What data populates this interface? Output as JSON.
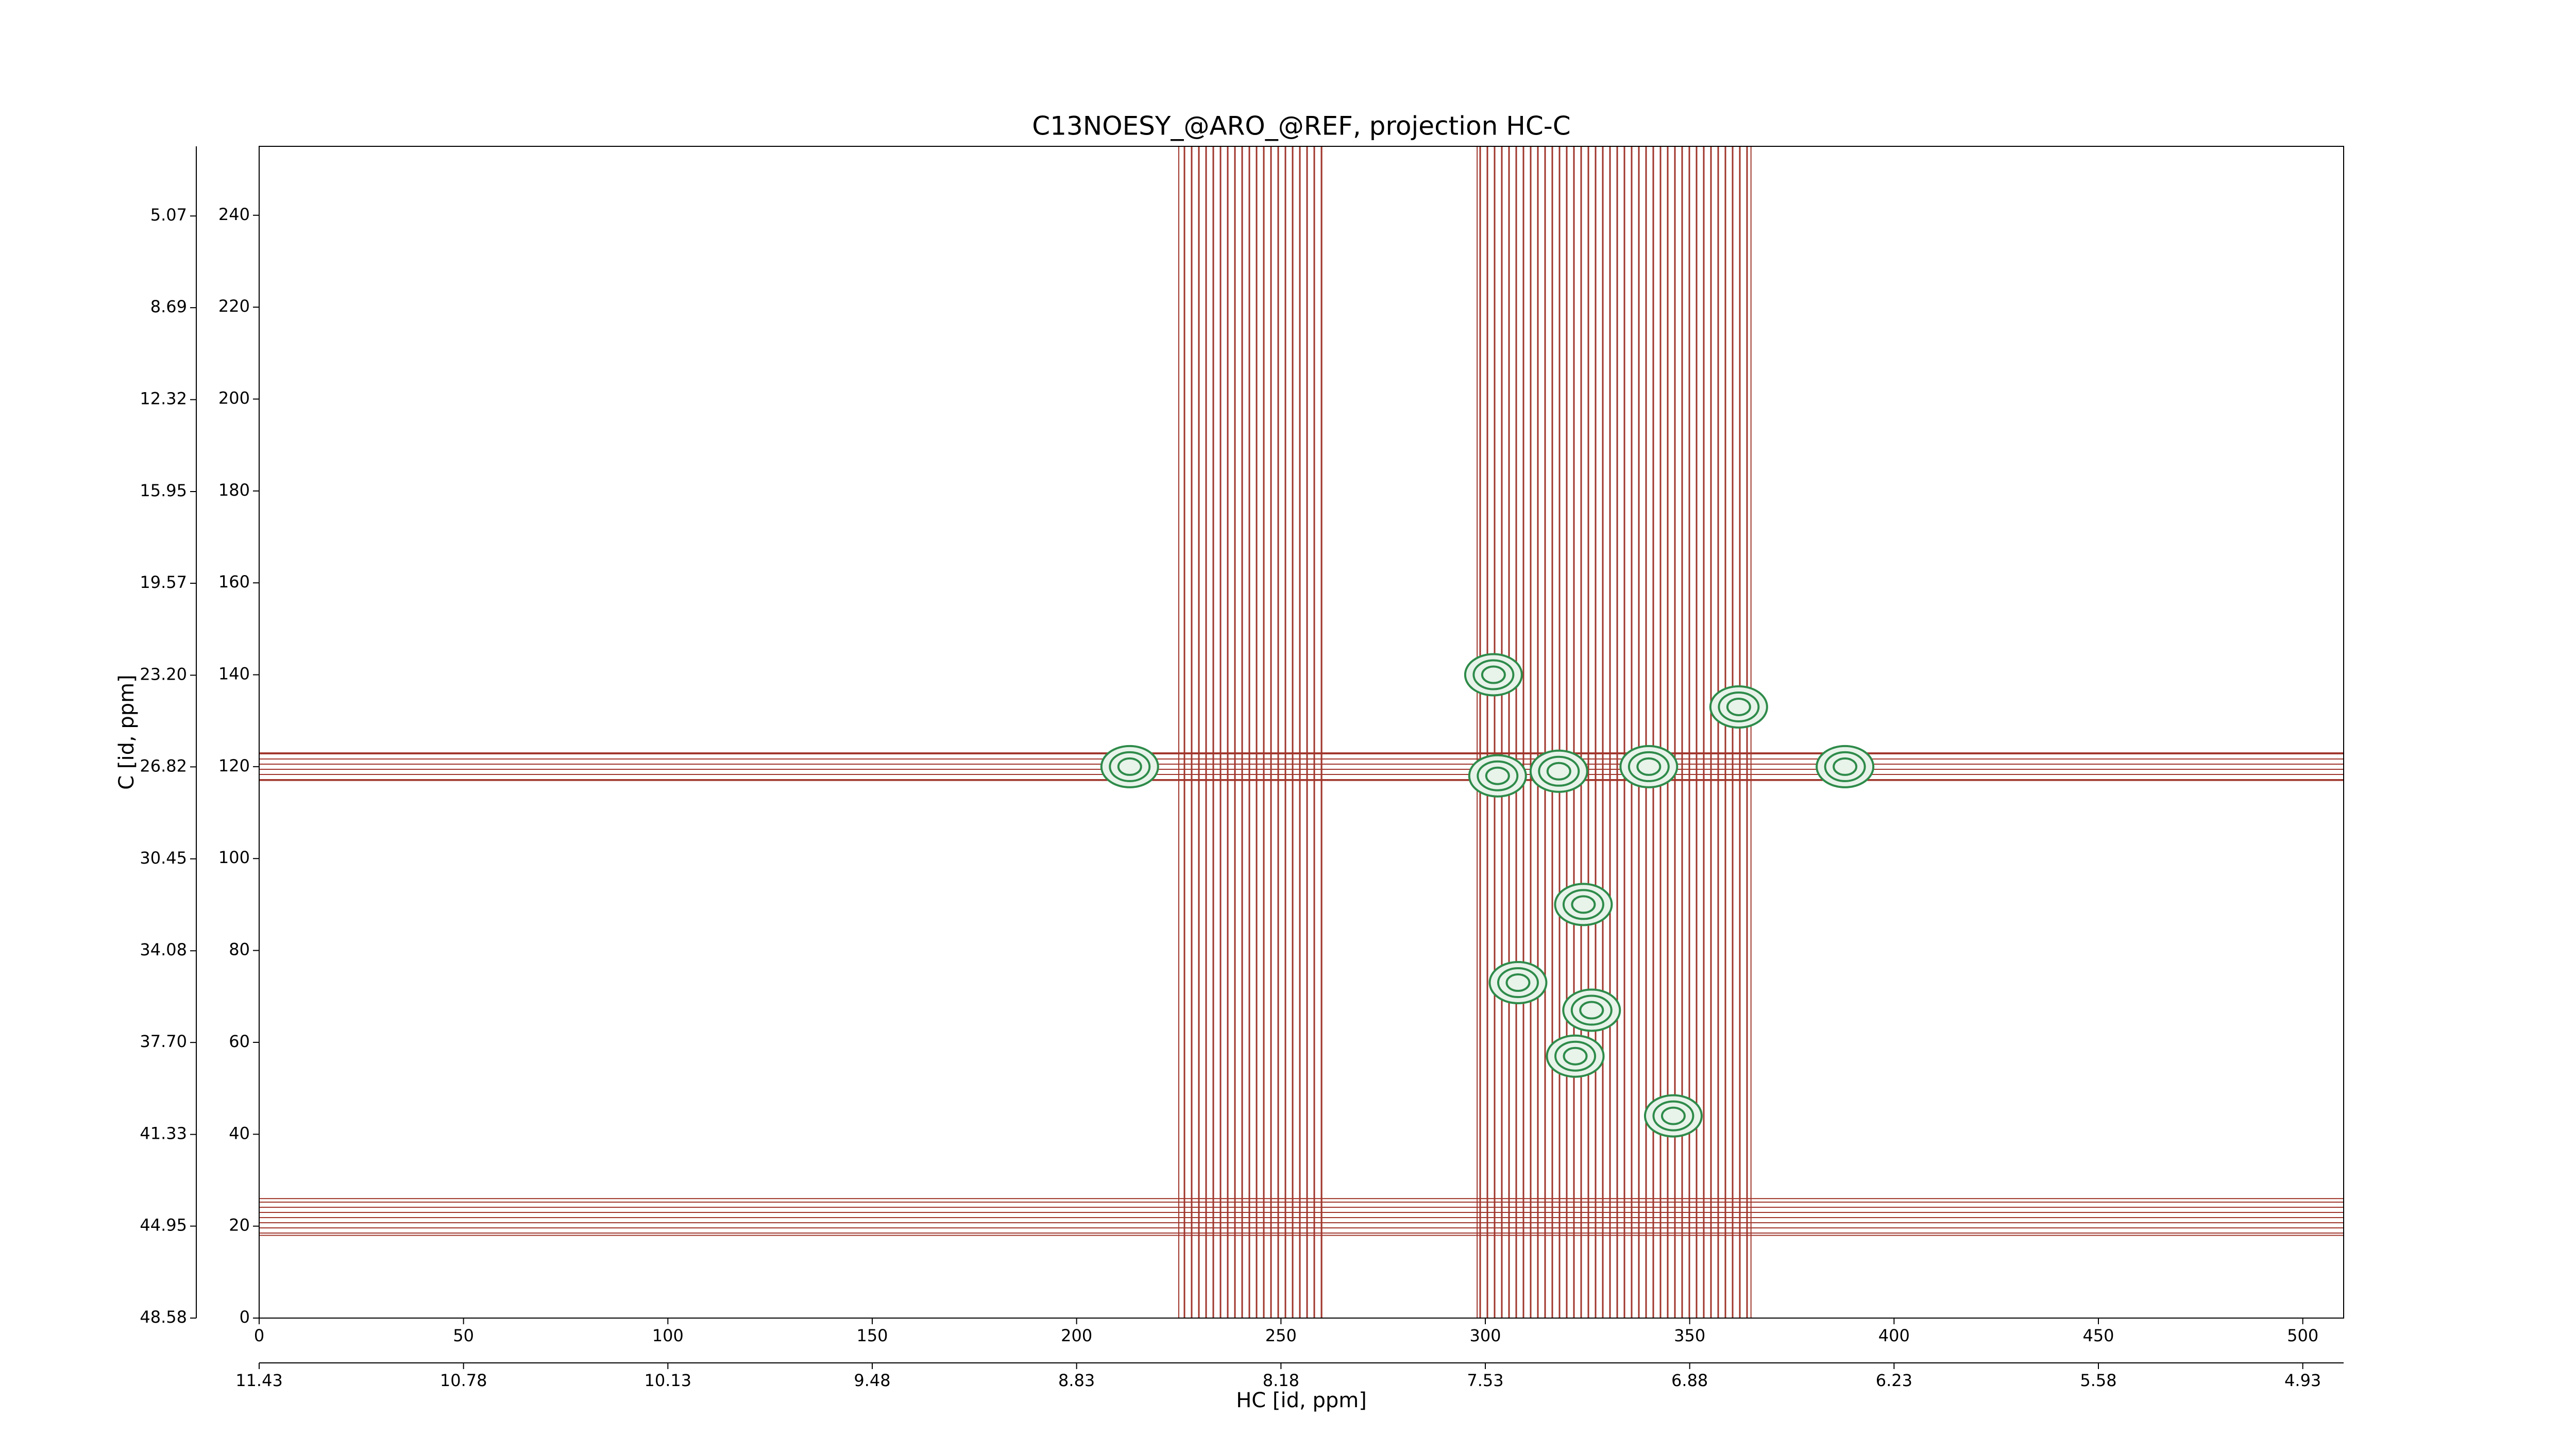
{
  "chart_data": {
    "type": "contour",
    "title": "C13NOESY_@ARO_@REF, projection HC-C",
    "xlabel": "HC [id, ppm]",
    "ylabel": "C [id, ppm]",
    "xlim": [
      0,
      510
    ],
    "xticks": [
      0,
      50,
      100,
      150,
      200,
      250,
      300,
      350,
      400,
      450,
      500
    ],
    "x2lim": [
      11.43,
      4.8
    ],
    "x2ticks": [
      11.43,
      10.78,
      10.13,
      9.48,
      8.83,
      8.18,
      7.53,
      6.88,
      6.23,
      5.58,
      4.93
    ],
    "ylim": [
      0,
      255
    ],
    "yticks": [
      0,
      20,
      40,
      60,
      80,
      100,
      120,
      140,
      160,
      180,
      200,
      220,
      240
    ],
    "y2lim": [
      48.58,
      2.32
    ],
    "y2ticks": [
      48.58,
      44.95,
      41.33,
      {
        "value": 37.7,
        "label": "37.70"
      },
      34.08,
      30.45,
      26.82,
      {
        "value": 23.2,
        "label": "23.20"
      },
      19.57,
      15.95,
      12.32,
      8.69,
      5.07
    ],
    "xbands": [
      [
        225,
        260
      ],
      [
        298,
        365
      ]
    ],
    "ybands": [
      [
        117,
        123
      ],
      [
        18,
        26
      ]
    ],
    "band_color": "#a0362c",
    "peaks": {
      "color": "#2e8b4a",
      "x": [
        302,
        318,
        322,
        346,
        340,
        362,
        308,
        324,
        303,
        388,
        213,
        326
      ],
      "y": [
        140,
        119,
        57,
        44,
        120,
        133,
        73,
        90,
        118,
        120,
        120,
        67
      ]
    }
  }
}
